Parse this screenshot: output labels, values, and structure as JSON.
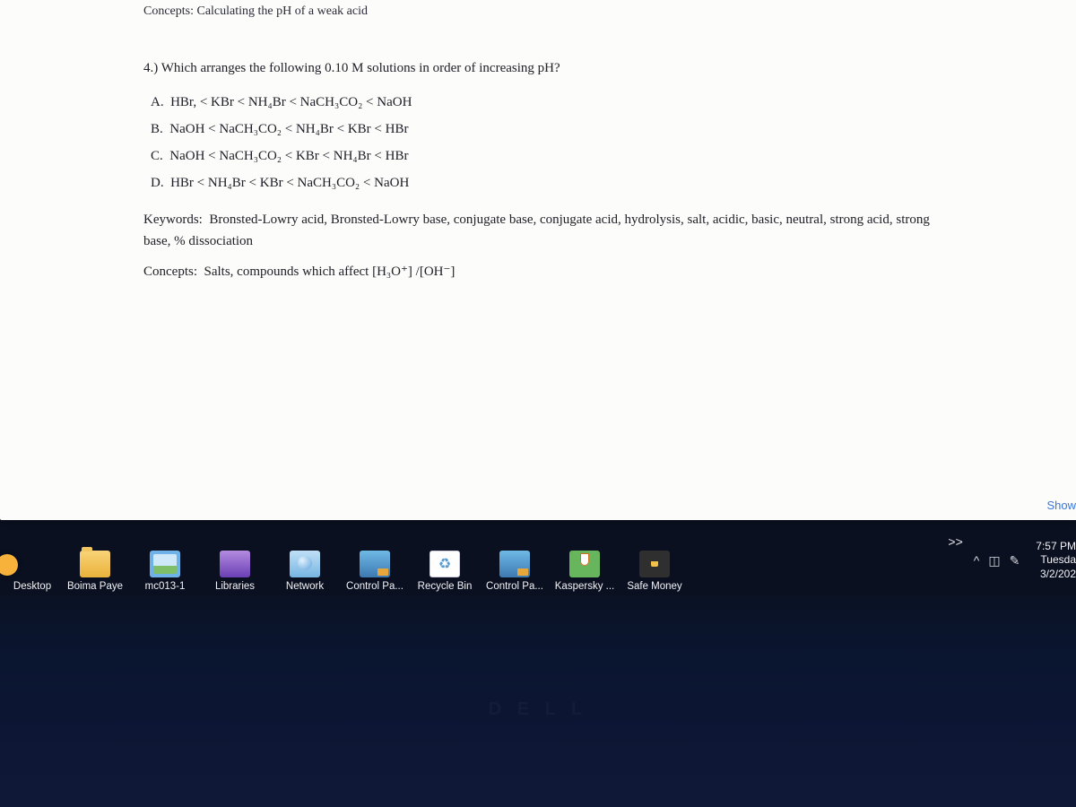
{
  "document": {
    "header_fragment": "Concepts:  Calculating the pH of a weak acid",
    "question_number": "4.)",
    "question_text": "Which arranges the following 0.10 M solutions in order of increasing pH?",
    "options": {
      "A": "HBr, < KBr < NH₄Br < NaCH₃CO₂ < NaOH",
      "B": "NaOH < NaCH₃CO₂ < NH₄Br < KBr < HBr",
      "C": "NaOH < NaCH₃CO₂ < KBr < NH₄Br < HBr",
      "D": "HBr < NH₄Br < KBr < NaCH₃CO₂ < NaOH"
    },
    "keywords_label": "Keywords:",
    "keywords_text": "Bronsted-Lowry acid, Bronsted-Lowry base, conjugate base, conjugate acid, hydrolysis, salt, acidic, basic, neutral, strong acid, strong base, % dissociation",
    "concepts_label": "Concepts:",
    "concepts_text": "Salts, compounds which affect [H₃O⁺] /[OH⁻]"
  },
  "page_link": "Show",
  "taskbar": {
    "label": "Desktop",
    "items": [
      {
        "icon": "icon-folder",
        "caption": "Boima Paye"
      },
      {
        "icon": "icon-pic",
        "caption": "mc013-1"
      },
      {
        "icon": "icon-libraries",
        "caption": "Libraries"
      },
      {
        "icon": "icon-network",
        "caption": "Network"
      },
      {
        "icon": "icon-control",
        "caption": "Control Pa..."
      },
      {
        "icon": "icon-recycle",
        "caption": "Recycle Bin"
      },
      {
        "icon": "icon-control",
        "caption": "Control Pa..."
      },
      {
        "icon": "icon-kaspersky",
        "caption": "Kaspersky ..."
      },
      {
        "icon": "icon-safe",
        "caption": "Safe Money"
      }
    ],
    "overflow": ">>",
    "tray_chevron": "^",
    "tray_battery": "◫",
    "tray_pen": "✎",
    "clock": {
      "time": "7:57 PM",
      "day": "Tuesda",
      "date": "3/2/202"
    }
  },
  "brand": "D E L L"
}
